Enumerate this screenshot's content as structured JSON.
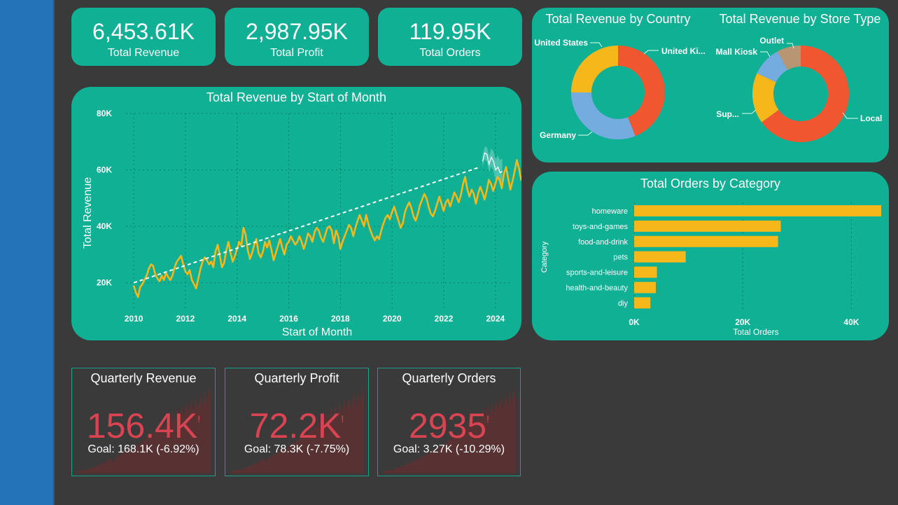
{
  "kpis": [
    {
      "value": "6,453.61K",
      "label": "Total Revenue"
    },
    {
      "value": "2,987.95K",
      "label": "Total Profit"
    },
    {
      "value": "119.95K",
      "label": "Total Orders"
    }
  ],
  "line_panel": {
    "title": "Total Revenue by Start of Month",
    "xlabel": "Start of Month",
    "ylabel": "Total Revenue",
    "y_ticks": [
      "80K",
      "60K",
      "40K",
      "20K"
    ],
    "x_ticks": [
      "2010",
      "2012",
      "2014",
      "2016",
      "2018",
      "2020",
      "2022",
      "2024"
    ]
  },
  "country_panel": {
    "title": "Total Revenue by Country",
    "labels": [
      "United States",
      "United Ki...",
      "Germany"
    ]
  },
  "store_panel": {
    "title": "Total Revenue by Store Type",
    "labels": [
      "Outlet",
      "Mall Kiosk",
      "Sup...",
      "Local"
    ]
  },
  "category_panel": {
    "title": "Total Orders by Category",
    "ylabel": "Category",
    "xlabel": "Total Orders",
    "x_ticks": [
      "0K",
      "20K",
      "40K"
    ]
  },
  "quarterly": [
    {
      "title": "Quarterly Revenue",
      "value": "156.4K",
      "flag": "!",
      "goal": "Goal: 168.1K (-6.92%)"
    },
    {
      "title": "Quarterly Profit",
      "value": "72.2K",
      "flag": "!",
      "goal": "Goal: 78.3K (-7.75%)"
    },
    {
      "title": "Quarterly Orders",
      "value": "2935",
      "flag": "!",
      "goal": "Goal: 3.27K (-10.29%)"
    }
  ],
  "colors": {
    "card": "#10b095",
    "background": "#3a3a3a",
    "sidebar": "#2473b9",
    "line": "#f5b71a",
    "bar": "#f5b71a",
    "red": "#f05731",
    "blue": "#74acdf",
    "yellow": "#f5b71a",
    "tan": "#b89674",
    "alert": "#d94452"
  },
  "chart_data": [
    {
      "type": "line",
      "title": "Total Revenue by Start of Month",
      "xlabel": "Start of Month",
      "ylabel": "Total Revenue",
      "ylim": [
        10000,
        80000
      ],
      "x_range": [
        2010,
        2024.4
      ],
      "series": [
        {
          "values_x_start": 2010.0,
          "values_x_step_years": 0.0833,
          "values": [
            19000,
            16500,
            15000,
            18500,
            19500,
            21000,
            22500,
            25000,
            26500,
            26000,
            23000,
            21500,
            20500,
            22500,
            21000,
            23500,
            22000,
            21000,
            22500,
            25500,
            27500,
            28500,
            29500,
            26500,
            24000,
            23000,
            24500,
            21000,
            19500,
            18000,
            21500,
            25000,
            27500,
            29000,
            28000,
            26500,
            27500,
            25500,
            31000,
            33500,
            29500,
            25500,
            27000,
            31500,
            34500,
            30500,
            27500,
            29500,
            32000,
            34500,
            33000,
            39500,
            37000,
            31500,
            28500,
            30500,
            33500,
            35500,
            30500,
            29000,
            31000,
            34500,
            32500,
            35000,
            31500,
            28000,
            30500,
            33000,
            35500,
            32500,
            30000,
            33500,
            34500,
            36500,
            35000,
            33500,
            34500,
            36500,
            34500,
            32000,
            34500,
            37500,
            36500,
            34500,
            38000,
            39500,
            38500,
            36000,
            34500,
            37000,
            39500,
            40000,
            38500,
            34000,
            38500,
            36500,
            32000,
            34500,
            36500,
            38500,
            40500,
            39500,
            36500,
            39500,
            42000,
            44000,
            42000,
            40000,
            44000,
            41000,
            38500,
            36500,
            35000,
            36500,
            35500,
            38500,
            41000,
            43000,
            44000,
            42500,
            45000,
            47000,
            44500,
            42000,
            39500,
            41000,
            45000,
            47000,
            48500,
            46500,
            43500,
            42000,
            44500,
            47500,
            49500,
            51500,
            50000,
            47000,
            44500,
            43500,
            45500,
            48000,
            50500,
            48000,
            45500,
            48500,
            49500,
            47000,
            49500,
            52000,
            50500,
            48500,
            51000,
            55000,
            57500,
            53000,
            50500,
            53000,
            51500,
            48000,
            51500,
            54000,
            52000,
            49500,
            52500,
            56500,
            55000,
            52500,
            55000,
            57500,
            56500,
            53500,
            58500,
            61000,
            57000,
            53000,
            56000,
            59500,
            63500,
            60500,
            56500,
            59000,
            61500,
            58500,
            54500,
            61000,
            64000,
            61500,
            58500,
            61500,
            65500,
            64000,
            60500,
            56000,
            58000,
            60000,
            59000,
            56000,
            53500,
            57000,
            62000,
            66000,
            64000,
            60500,
            65500,
            62000,
            58000,
            55000,
            51500,
            57000,
            61000,
            54000,
            43000
          ]
        },
        {
          "name": "forecast",
          "values_x_start": 2023.5,
          "values": [
            63000,
            66000,
            65500,
            62000,
            64500,
            63000,
            60000,
            61000,
            59000,
            59500
          ]
        },
        {
          "name": "trend",
          "x": [
            2010.0,
            2023.4
          ],
          "values": [
            20000,
            61000
          ]
        }
      ]
    },
    {
      "type": "pie",
      "title": "Total Revenue by Country",
      "categories": [
        "United Ki...",
        "Germany",
        "United States"
      ],
      "values": [
        44,
        31,
        25
      ]
    },
    {
      "type": "pie",
      "title": "Total Revenue by Store Type",
      "categories": [
        "Local",
        "Sup...",
        "Mall Kiosk",
        "Outlet"
      ],
      "values": [
        65,
        17,
        10,
        8
      ]
    },
    {
      "type": "bar",
      "title": "Total Orders by Category",
      "xlabel": "Total Orders",
      "ylabel": "Category",
      "categories": [
        "homeware",
        "toys-and-games",
        "food-and-drink",
        "pets",
        "sports-and-leisure",
        "health-and-beauty",
        "diy"
      ],
      "values": [
        45500,
        27000,
        26500,
        9500,
        4200,
        4000,
        3000
      ],
      "xlim": [
        0,
        50000
      ]
    },
    {
      "type": "area",
      "title": "Quarterly Revenue",
      "values": [
        2,
        3,
        2,
        4,
        3,
        5,
        4,
        3,
        6,
        5,
        7,
        6,
        8,
        9,
        7,
        10,
        12,
        9,
        13,
        11,
        15,
        13,
        17,
        14,
        12,
        18,
        16,
        20,
        17,
        22,
        19,
        24,
        21,
        26,
        23,
        28,
        22,
        25,
        30,
        27,
        32,
        28,
        35,
        30,
        38,
        33,
        40,
        36,
        42,
        38,
        45,
        40,
        48,
        43,
        50,
        45,
        52,
        47,
        55,
        50,
        48,
        60,
        52,
        58,
        64,
        55,
        62,
        70,
        58,
        66,
        72,
        60,
        68,
        75,
        63,
        70,
        78,
        66,
        74,
        80,
        68,
        72,
        85,
        76,
        70,
        88,
        74,
        80,
        92,
        78
      ]
    }
  ]
}
